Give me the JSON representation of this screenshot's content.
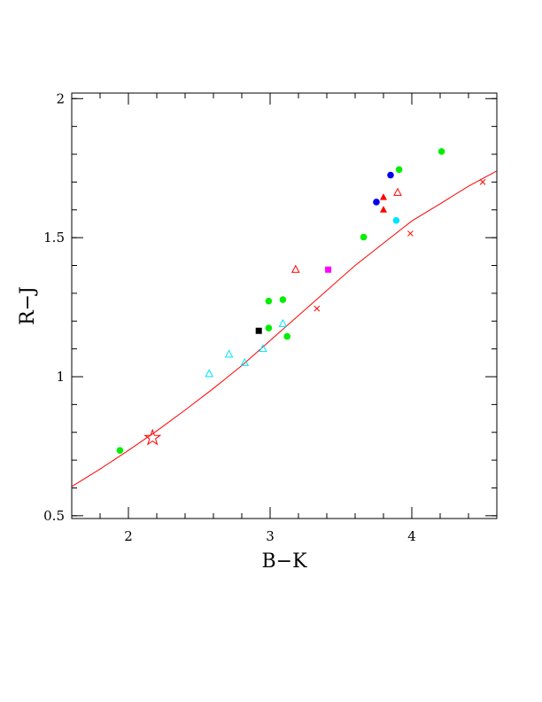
{
  "chart_data": {
    "type": "scatter",
    "title": "",
    "xlabel": "B−K",
    "ylabel": "R−J",
    "xlim": [
      1.6,
      4.6
    ],
    "ylim": [
      0.49,
      2.02
    ],
    "grid": false,
    "x_ticks": [
      {
        "value": 2,
        "label": "2"
      },
      {
        "value": 3,
        "label": "3"
      },
      {
        "value": 4,
        "label": "4"
      }
    ],
    "y_ticks": [
      {
        "value": 0.5,
        "label": "0.5"
      },
      {
        "value": 1,
        "label": "1"
      },
      {
        "value": 1.5,
        "label": "1.5"
      },
      {
        "value": 2,
        "label": "2"
      }
    ],
    "x_minor_step": 0.2,
    "y_minor_step": 0.1,
    "model_curve": {
      "color": "#ff0000",
      "points": [
        [
          1.6,
          0.605
        ],
        [
          1.8,
          0.668
        ],
        [
          2.0,
          0.735
        ],
        [
          2.2,
          0.805
        ],
        [
          2.4,
          0.88
        ],
        [
          2.6,
          0.958
        ],
        [
          2.8,
          1.04
        ],
        [
          3.0,
          1.13
        ],
        [
          3.2,
          1.22
        ],
        [
          3.4,
          1.31
        ],
        [
          3.6,
          1.4
        ],
        [
          3.8,
          1.48
        ],
        [
          4.0,
          1.56
        ],
        [
          4.2,
          1.622
        ],
        [
          4.4,
          1.685
        ],
        [
          4.6,
          1.74
        ]
      ],
      "cross_markers": [
        [
          3.33,
          1.245
        ],
        [
          3.99,
          1.515
        ],
        [
          4.5,
          1.7
        ]
      ]
    },
    "series": [
      {
        "marker": "filled-circle",
        "color": "#00ee00",
        "points": [
          [
            1.94,
            0.735
          ],
          [
            2.99,
            1.272
          ],
          [
            3.09,
            1.277
          ],
          [
            2.99,
            1.175
          ],
          [
            3.12,
            1.145
          ],
          [
            3.66,
            1.502
          ],
          [
            3.91,
            1.745
          ],
          [
            4.21,
            1.81
          ]
        ]
      },
      {
        "marker": "open-triangle",
        "color": "#00e5ff",
        "points": [
          [
            2.57,
            1.01
          ],
          [
            2.71,
            1.08
          ],
          [
            2.82,
            1.05
          ],
          [
            2.95,
            1.1
          ],
          [
            3.09,
            1.19
          ]
        ]
      },
      {
        "marker": "open-triangle",
        "color": "#ff0000",
        "points": [
          [
            3.18,
            1.385
          ],
          [
            3.9,
            1.662
          ]
        ]
      },
      {
        "marker": "filled-triangle",
        "color": "#ff0000",
        "points": [
          [
            3.8,
            1.645
          ],
          [
            3.8,
            1.6
          ]
        ]
      },
      {
        "marker": "filled-circle",
        "color": "#0000ee",
        "points": [
          [
            3.75,
            1.628
          ],
          [
            3.85,
            1.725
          ]
        ]
      },
      {
        "marker": "filled-circle",
        "color": "#00e5ff",
        "points": [
          [
            3.89,
            1.562
          ]
        ]
      },
      {
        "marker": "filled-square",
        "color": "#000000",
        "points": [
          [
            2.92,
            1.165
          ]
        ]
      },
      {
        "marker": "filled-square",
        "color": "#ff00ff",
        "points": [
          [
            3.41,
            1.385
          ]
        ]
      },
      {
        "marker": "open-star",
        "color": "#ff0000",
        "points": [
          [
            2.17,
            0.78
          ]
        ]
      }
    ]
  }
}
